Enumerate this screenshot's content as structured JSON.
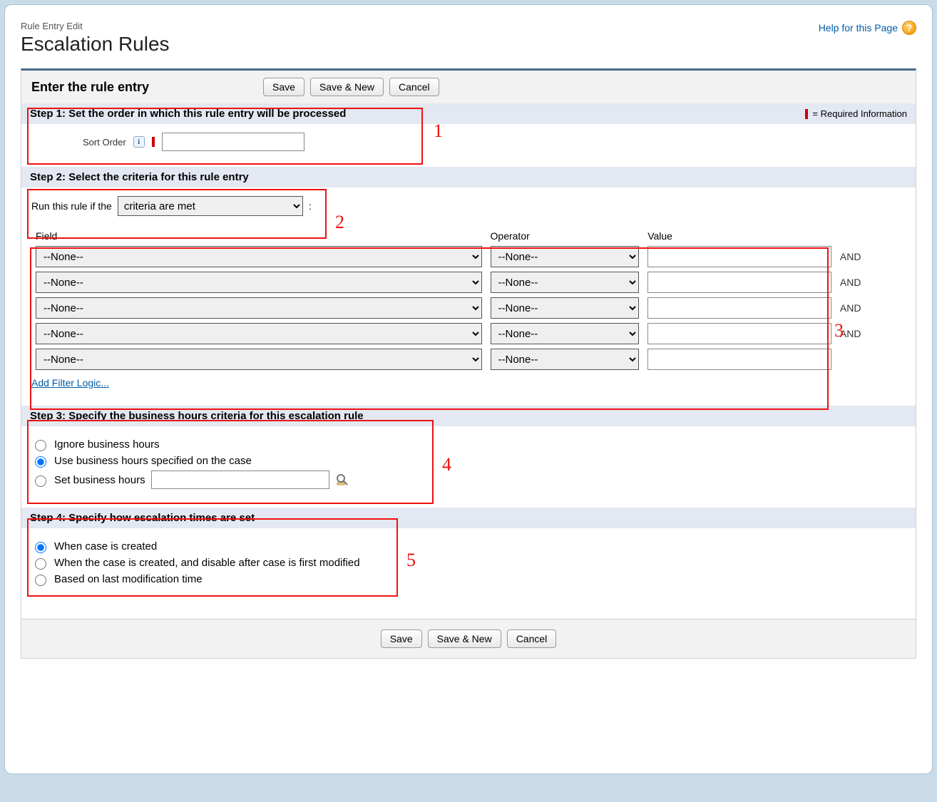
{
  "header": {
    "breadcrumb": "Rule Entry Edit",
    "title": "Escalation Rules",
    "help_link": "Help for this Page",
    "help_icon_char": "?"
  },
  "panel": {
    "title": "Enter the rule entry",
    "buttons": {
      "save": "Save",
      "save_new": "Save & New",
      "cancel": "Cancel"
    }
  },
  "step1": {
    "title": "Step 1: Set the order in which this rule entry will be processed",
    "required_note": "= Required Information",
    "sort_label": "Sort Order",
    "info_char": "i",
    "sort_value": ""
  },
  "step2": {
    "title": "Step 2: Select the criteria for this rule entry",
    "run_label": "Run this rule if the",
    "run_option": "criteria are met",
    "colon": ":",
    "headers": {
      "field": "Field",
      "operator": "Operator",
      "value": "Value"
    },
    "none_option": "--None--",
    "and_label": "AND",
    "rows": [
      {
        "field": "--None--",
        "operator": "--None--",
        "value": "",
        "and": true
      },
      {
        "field": "--None--",
        "operator": "--None--",
        "value": "",
        "and": true
      },
      {
        "field": "--None--",
        "operator": "--None--",
        "value": "",
        "and": true
      },
      {
        "field": "--None--",
        "operator": "--None--",
        "value": "",
        "and": true
      },
      {
        "field": "--None--",
        "operator": "--None--",
        "value": "",
        "and": false
      }
    ],
    "add_filter": "Add Filter Logic..."
  },
  "step3": {
    "title": "Step 3: Specify the business hours criteria for this escalation rule",
    "options": {
      "ignore": "Ignore business hours",
      "use_case": "Use business hours specified on the case",
      "set": "Set business hours"
    },
    "selected": "use_case",
    "bh_value": ""
  },
  "step4": {
    "title": "Step 4: Specify how escalation times are set",
    "options": {
      "created": "When case is created",
      "created_disable": "When the case is created, and disable after case is first modified",
      "last_mod": "Based on last modification time"
    },
    "selected": "created"
  },
  "annotations": {
    "n1": "1",
    "n2": "2",
    "n3": "3",
    "n4": "4",
    "n5": "5"
  },
  "colors": {
    "page_bg": "#c9dbe8",
    "link": "#015BA7",
    "accent_bar": "#4a6a8a",
    "step_bg": "#e3e8f2",
    "required": "#c00",
    "annot": "#e11"
  }
}
